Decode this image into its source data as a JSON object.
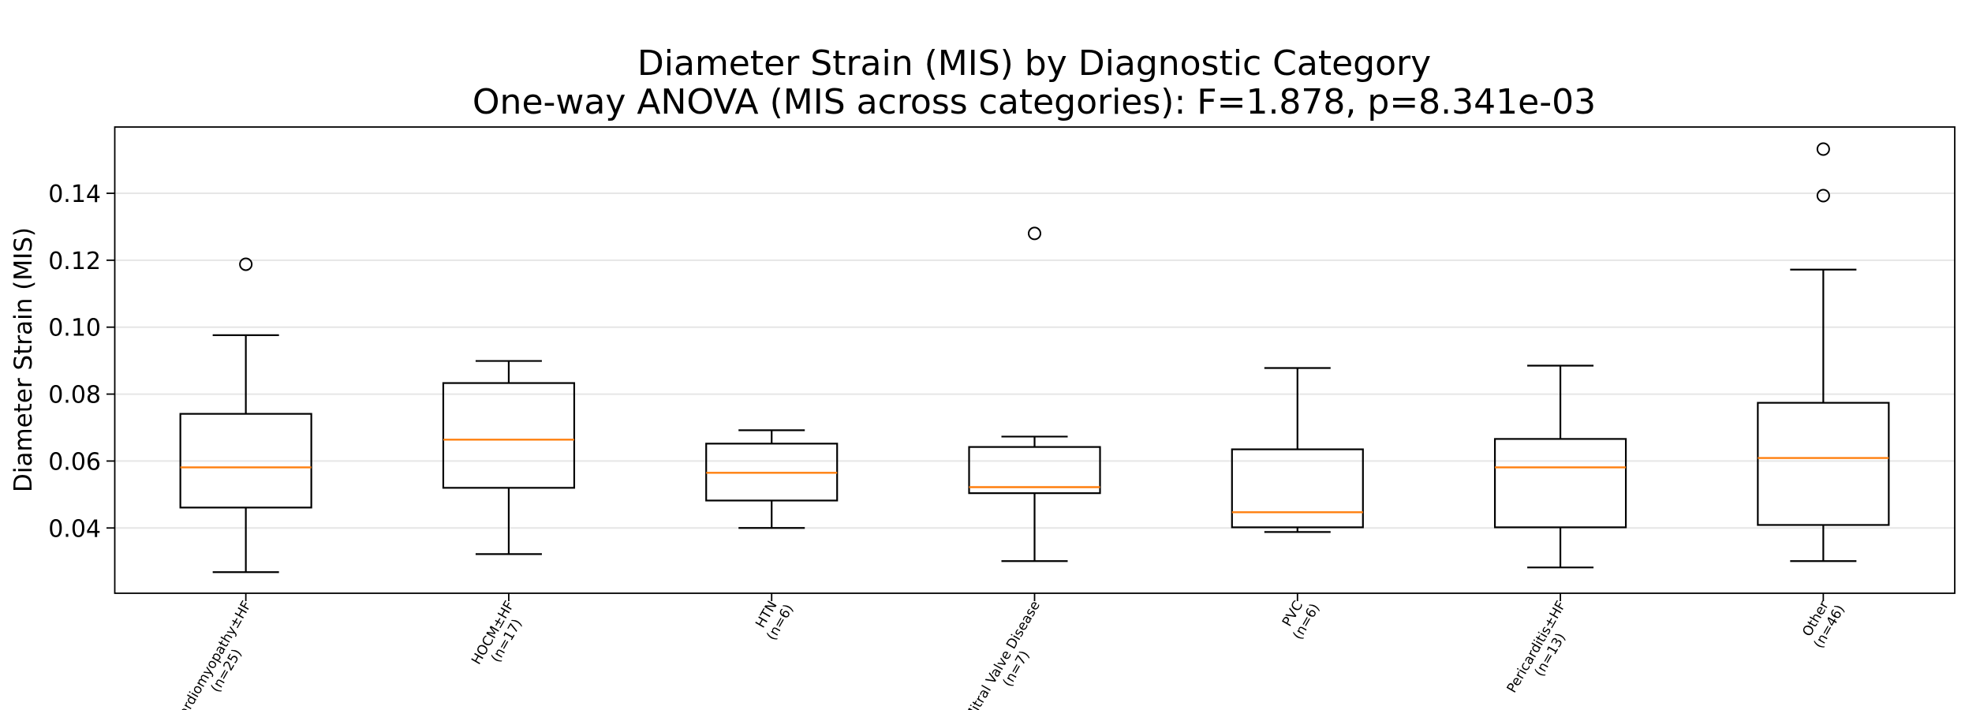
{
  "chart_data": {
    "type": "box",
    "title": "Diameter Strain (MIS) by Diagnostic Category",
    "subtitle": "One-way ANOVA (MIS across categories): F=1.878, p=8.341e-03",
    "xlabel": "",
    "ylabel": "Diameter Strain (MIS)",
    "ylim": [
      0.0205,
      0.1598
    ],
    "xlim": [
      0.5,
      7.5
    ],
    "yticks": [
      0.04,
      0.06,
      0.08,
      0.1,
      0.12,
      0.14
    ],
    "ytick_labels": [
      "0.04",
      "0.06",
      "0.08",
      "0.10",
      "0.12",
      "0.14"
    ],
    "grid": "horizontal",
    "colors": {
      "box": "#000000",
      "median": "#ff7f0e",
      "grid": "#e6e6e6",
      "outlier": "#000000"
    },
    "categories": [
      {
        "name": "Cardiomyopathy±HF",
        "n_label": "(n=25)",
        "whislo": 0.0268,
        "q1": 0.0461,
        "med": 0.0581,
        "q3": 0.0741,
        "whishi": 0.0976,
        "fliers": [
          0.1188
        ]
      },
      {
        "name": "HOCM±HF",
        "n_label": "(n=17)",
        "whislo": 0.0322,
        "q1": 0.052,
        "med": 0.0664,
        "q3": 0.0833,
        "whishi": 0.0899,
        "fliers": []
      },
      {
        "name": "HTN",
        "n_label": "(n=6)",
        "whislo": 0.04,
        "q1": 0.0482,
        "med": 0.0565,
        "q3": 0.0652,
        "whishi": 0.0692,
        "fliers": []
      },
      {
        "name": "Mitral Valve Disease",
        "n_label": "(n=7)",
        "whislo": 0.0301,
        "q1": 0.0504,
        "med": 0.0522,
        "q3": 0.0642,
        "whishi": 0.0673,
        "fliers": [
          0.128
        ]
      },
      {
        "name": "PVC",
        "n_label": "(n=6)",
        "whislo": 0.0388,
        "q1": 0.0402,
        "med": 0.0447,
        "q3": 0.0635,
        "whishi": 0.0878,
        "fliers": []
      },
      {
        "name": "Pericarditis±HF",
        "n_label": "(n=13)",
        "whislo": 0.0282,
        "q1": 0.0402,
        "med": 0.0581,
        "q3": 0.0666,
        "whishi": 0.0885,
        "fliers": []
      },
      {
        "name": "Other",
        "n_label": "(n=46)",
        "whislo": 0.0301,
        "q1": 0.0409,
        "med": 0.0609,
        "q3": 0.0774,
        "whishi": 0.1172,
        "fliers": [
          0.1532,
          0.1393
        ]
      }
    ]
  }
}
